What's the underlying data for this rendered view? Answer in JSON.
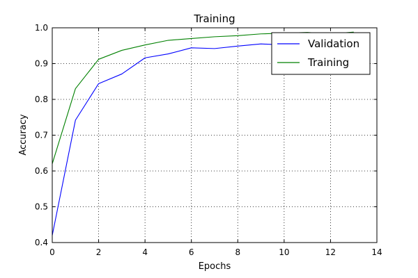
{
  "chart_data": {
    "type": "line",
    "title": "Training",
    "xlabel": "Epochs",
    "ylabel": "Accuracy",
    "xlim": [
      0,
      14
    ],
    "ylim": [
      0.4,
      1.0
    ],
    "xticks": [
      "0",
      "2",
      "4",
      "6",
      "8",
      "10",
      "12",
      "14"
    ],
    "yticks": [
      "0.4",
      "0.5",
      "0.6",
      "0.7",
      "0.8",
      "0.9",
      "1.0"
    ],
    "grid": true,
    "legend_position": "top-right",
    "x": [
      0,
      1,
      2,
      3,
      4,
      5,
      6,
      7,
      8,
      9,
      10,
      11,
      12,
      13
    ],
    "series": [
      {
        "name": "Validation",
        "color": "#0000ff",
        "values": [
          0.42,
          0.742,
          0.844,
          0.871,
          0.916,
          0.927,
          0.944,
          0.942,
          0.949,
          0.955,
          0.952,
          0.96,
          0.965,
          0.97
        ]
      },
      {
        "name": "Training",
        "color": "#008000",
        "values": [
          0.62,
          0.83,
          0.912,
          0.937,
          0.952,
          0.965,
          0.97,
          0.975,
          0.978,
          0.983,
          0.985,
          0.987,
          0.983,
          0.988
        ]
      }
    ]
  }
}
